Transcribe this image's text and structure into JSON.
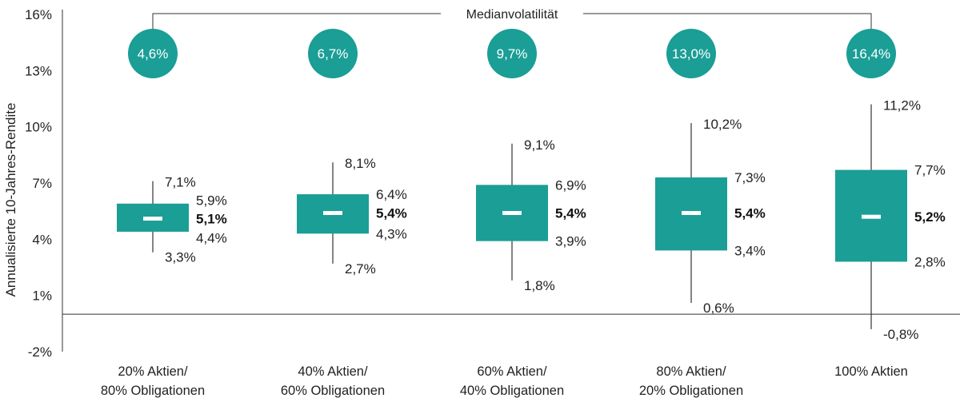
{
  "chart_data": {
    "type": "box",
    "ylabel": "Annualisierte 10-Jahres-Rendite",
    "ylim": [
      -2,
      16
    ],
    "yticks": [
      "16%",
      "13%",
      "10%",
      "7%",
      "4%",
      "1%",
      "-2%"
    ],
    "ytick_values": [
      16,
      13,
      10,
      7,
      4,
      1,
      -2
    ],
    "baseline": 0,
    "volatility_label": "Medianvolatilität",
    "color": "#1a9e96",
    "categories": [
      {
        "line1": "20% Aktien/",
        "line2": "80% Obligationen",
        "vol": "4,6%",
        "max": 7.1,
        "q3": 5.9,
        "median": 5.1,
        "q1": 4.4,
        "min": 3.3,
        "max_label": "7,1%",
        "q3_label": "5,9%",
        "median_label": "5,1%",
        "q1_label": "4,4%",
        "min_label": "3,3%"
      },
      {
        "line1": "40% Aktien/",
        "line2": "60% Obligationen",
        "vol": "6,7%",
        "max": 8.1,
        "q3": 6.4,
        "median": 5.4,
        "q1": 4.3,
        "min": 2.7,
        "max_label": "8,1%",
        "q3_label": "6,4%",
        "median_label": "5,4%",
        "q1_label": "4,3%",
        "min_label": "2,7%"
      },
      {
        "line1": "60% Aktien/",
        "line2": "40% Obligationen",
        "vol": "9,7%",
        "max": 9.1,
        "q3": 6.9,
        "median": 5.4,
        "q1": 3.9,
        "min": 1.8,
        "max_label": "9,1%",
        "q3_label": "6,9%",
        "median_label": "5,4%",
        "q1_label": "3,9%",
        "min_label": "1,8%"
      },
      {
        "line1": "80% Aktien/",
        "line2": "20% Obligationen",
        "vol": "13,0%",
        "max": 10.2,
        "q3": 7.3,
        "median": 5.4,
        "q1": 3.4,
        "min": 0.6,
        "max_label": "10,2%",
        "q3_label": "7,3%",
        "median_label": "5,4%",
        "q1_label": "3,4%",
        "min_label": "0,6%"
      },
      {
        "line1": "100% Aktien",
        "line2": "",
        "vol": "16,4%",
        "max": 11.2,
        "q3": 7.7,
        "median": 5.2,
        "q1": 2.8,
        "min": -0.8,
        "max_label": "11,2%",
        "q3_label": "7,7%",
        "median_label": "5,2%",
        "q1_label": "2,8%",
        "min_label": "-0,8%"
      }
    ]
  }
}
